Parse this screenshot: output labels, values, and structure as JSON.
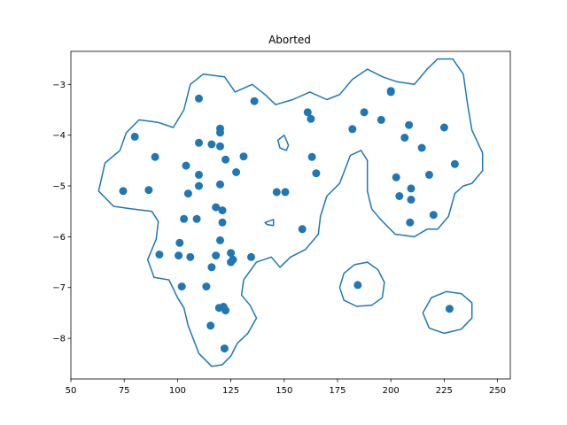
{
  "chart_data": {
    "type": "scatter",
    "title": "Aborted",
    "xlabel": "",
    "ylabel": "",
    "xlim": [
      50,
      256
    ],
    "ylim": [
      -8.8,
      -2.35
    ],
    "xticks": [
      50,
      75,
      100,
      125,
      150,
      175,
      200,
      225,
      250
    ],
    "yticks": [
      -8,
      -7,
      -6,
      -5,
      -4,
      -3
    ],
    "grid": false,
    "color": "#1f77b4",
    "points": [
      {
        "x": 110.0,
        "y": -3.28
      },
      {
        "x": 136.0,
        "y": -3.33
      },
      {
        "x": 80.0,
        "y": -4.03
      },
      {
        "x": 89.5,
        "y": -4.43
      },
      {
        "x": 74.5,
        "y": -5.1
      },
      {
        "x": 86.5,
        "y": -5.08
      },
      {
        "x": 120.0,
        "y": -3.87
      },
      {
        "x": 120.0,
        "y": -3.95
      },
      {
        "x": 110.0,
        "y": -4.15
      },
      {
        "x": 116.0,
        "y": -4.18
      },
      {
        "x": 120.0,
        "y": -4.22
      },
      {
        "x": 131.0,
        "y": -4.42
      },
      {
        "x": 122.5,
        "y": -4.48
      },
      {
        "x": 104.0,
        "y": -4.6
      },
      {
        "x": 110.0,
        "y": -4.78
      },
      {
        "x": 127.5,
        "y": -4.73
      },
      {
        "x": 110.0,
        "y": -5.0
      },
      {
        "x": 120.0,
        "y": -4.97
      },
      {
        "x": 105.0,
        "y": -5.15
      },
      {
        "x": 118.0,
        "y": -5.42
      },
      {
        "x": 121.0,
        "y": -5.48
      },
      {
        "x": 103.0,
        "y": -5.65
      },
      {
        "x": 109.0,
        "y": -5.65
      },
      {
        "x": 121.0,
        "y": -5.72
      },
      {
        "x": 158.5,
        "y": -5.85
      },
      {
        "x": 101.0,
        "y": -6.12
      },
      {
        "x": 120.0,
        "y": -6.07
      },
      {
        "x": 91.5,
        "y": -6.35
      },
      {
        "x": 100.5,
        "y": -6.37
      },
      {
        "x": 106.0,
        "y": -6.4
      },
      {
        "x": 118.0,
        "y": -6.37
      },
      {
        "x": 125.0,
        "y": -6.32
      },
      {
        "x": 126.0,
        "y": -6.45
      },
      {
        "x": 125.0,
        "y": -6.5
      },
      {
        "x": 134.5,
        "y": -6.4
      },
      {
        "x": 116.0,
        "y": -6.6
      },
      {
        "x": 102.0,
        "y": -6.98
      },
      {
        "x": 113.5,
        "y": -6.98
      },
      {
        "x": 119.5,
        "y": -7.4
      },
      {
        "x": 121.5,
        "y": -7.38
      },
      {
        "x": 122.5,
        "y": -7.45
      },
      {
        "x": 115.5,
        "y": -7.75
      },
      {
        "x": 122.0,
        "y": -8.2
      },
      {
        "x": 146.5,
        "y": -5.12
      },
      {
        "x": 150.5,
        "y": -5.12
      },
      {
        "x": 161.0,
        "y": -3.55
      },
      {
        "x": 162.5,
        "y": -3.68
      },
      {
        "x": 163.0,
        "y": -4.43
      },
      {
        "x": 165.0,
        "y": -4.75
      },
      {
        "x": 182.0,
        "y": -3.88
      },
      {
        "x": 187.5,
        "y": -3.55
      },
      {
        "x": 195.5,
        "y": -3.7
      },
      {
        "x": 200.0,
        "y": -3.13
      },
      {
        "x": 200.0,
        "y": -3.15
      },
      {
        "x": 208.5,
        "y": -3.8
      },
      {
        "x": 206.5,
        "y": -4.05
      },
      {
        "x": 214.5,
        "y": -4.25
      },
      {
        "x": 225.0,
        "y": -3.85
      },
      {
        "x": 202.5,
        "y": -4.83
      },
      {
        "x": 218.0,
        "y": -4.78
      },
      {
        "x": 230.0,
        "y": -4.57
      },
      {
        "x": 209.5,
        "y": -5.05
      },
      {
        "x": 204.0,
        "y": -5.2
      },
      {
        "x": 209.5,
        "y": -5.27
      },
      {
        "x": 220.0,
        "y": -5.57
      },
      {
        "x": 209.0,
        "y": -5.72
      },
      {
        "x": 184.5,
        "y": -6.95
      },
      {
        "x": 227.5,
        "y": -7.42
      }
    ],
    "contours": [
      [
        [
          63,
          -5.1
        ],
        [
          66,
          -4.55
        ],
        [
          73,
          -4.3
        ],
        [
          76,
          -3.95
        ],
        [
          82,
          -3.7
        ],
        [
          91,
          -3.75
        ],
        [
          98,
          -3.85
        ],
        [
          103,
          -3.5
        ],
        [
          106,
          -3.0
        ],
        [
          112,
          -2.8
        ],
        [
          122,
          -2.85
        ],
        [
          127,
          -3.15
        ],
        [
          135,
          -3.0
        ],
        [
          141,
          -3.2
        ],
        [
          146,
          -3.4
        ],
        [
          154,
          -3.3
        ],
        [
          162,
          -3.15
        ],
        [
          170,
          -3.3
        ],
        [
          176,
          -3.2
        ],
        [
          182,
          -2.9
        ],
        [
          189,
          -2.7
        ],
        [
          196,
          -2.85
        ],
        [
          203,
          -2.95
        ],
        [
          211,
          -3.0
        ],
        [
          217,
          -2.7
        ],
        [
          222,
          -2.5
        ],
        [
          229,
          -2.5
        ],
        [
          234,
          -2.8
        ],
        [
          236,
          -3.4
        ],
        [
          238,
          -3.9
        ],
        [
          243,
          -4.35
        ],
        [
          243,
          -4.7
        ],
        [
          238,
          -4.95
        ],
        [
          234,
          -5.0
        ],
        [
          230,
          -5.15
        ],
        [
          227,
          -5.6
        ],
        [
          222,
          -5.85
        ],
        [
          217,
          -5.85
        ],
        [
          211,
          -6.0
        ],
        [
          202,
          -5.95
        ],
        [
          195,
          -5.65
        ],
        [
          191,
          -5.45
        ],
        [
          189,
          -5.1
        ],
        [
          189,
          -4.5
        ],
        [
          186,
          -4.3
        ],
        [
          181,
          -4.4
        ],
        [
          176,
          -4.95
        ],
        [
          170,
          -5.2
        ],
        [
          167,
          -5.6
        ],
        [
          166,
          -5.95
        ],
        [
          160,
          -6.25
        ],
        [
          153,
          -6.4
        ],
        [
          148,
          -6.6
        ],
        [
          144,
          -6.4
        ],
        [
          137,
          -6.5
        ],
        [
          131,
          -6.85
        ],
        [
          130,
          -7.15
        ],
        [
          134,
          -7.35
        ],
        [
          137,
          -7.6
        ],
        [
          133,
          -7.9
        ],
        [
          128,
          -8.1
        ],
        [
          125,
          -8.35
        ],
        [
          121,
          -8.52
        ],
        [
          116,
          -8.55
        ],
        [
          110,
          -8.3
        ],
        [
          105,
          -7.75
        ],
        [
          103,
          -7.4
        ],
        [
          100,
          -7.2
        ],
        [
          96,
          -6.85
        ],
        [
          89,
          -6.8
        ],
        [
          86,
          -6.45
        ],
        [
          90,
          -6.05
        ],
        [
          91,
          -5.7
        ],
        [
          88,
          -5.5
        ],
        [
          78,
          -5.45
        ],
        [
          70,
          -5.4
        ],
        [
          63,
          -5.1
        ]
      ],
      [
        [
          176,
          -7.0
        ],
        [
          178,
          -6.72
        ],
        [
          183,
          -6.55
        ],
        [
          189,
          -6.5
        ],
        [
          194,
          -6.65
        ],
        [
          197,
          -6.9
        ],
        [
          196,
          -7.2
        ],
        [
          191,
          -7.35
        ],
        [
          184,
          -7.37
        ],
        [
          178,
          -7.25
        ],
        [
          176,
          -7.0
        ]
      ],
      [
        [
          215,
          -7.5
        ],
        [
          219,
          -7.2
        ],
        [
          226,
          -7.08
        ],
        [
          233,
          -7.12
        ],
        [
          238,
          -7.3
        ],
        [
          238,
          -7.6
        ],
        [
          233,
          -7.82
        ],
        [
          225,
          -7.9
        ],
        [
          218,
          -7.8
        ],
        [
          215,
          -7.5
        ]
      ],
      [
        [
          147,
          -4.1
        ],
        [
          150,
          -4.0
        ],
        [
          152,
          -4.2
        ],
        [
          151,
          -4.3
        ],
        [
          148,
          -4.25
        ],
        [
          147,
          -4.1
        ]
      ],
      [
        [
          141,
          -5.72
        ],
        [
          145,
          -5.66
        ],
        [
          145,
          -5.78
        ],
        [
          142,
          -5.76
        ],
        [
          141,
          -5.72
        ]
      ]
    ]
  }
}
